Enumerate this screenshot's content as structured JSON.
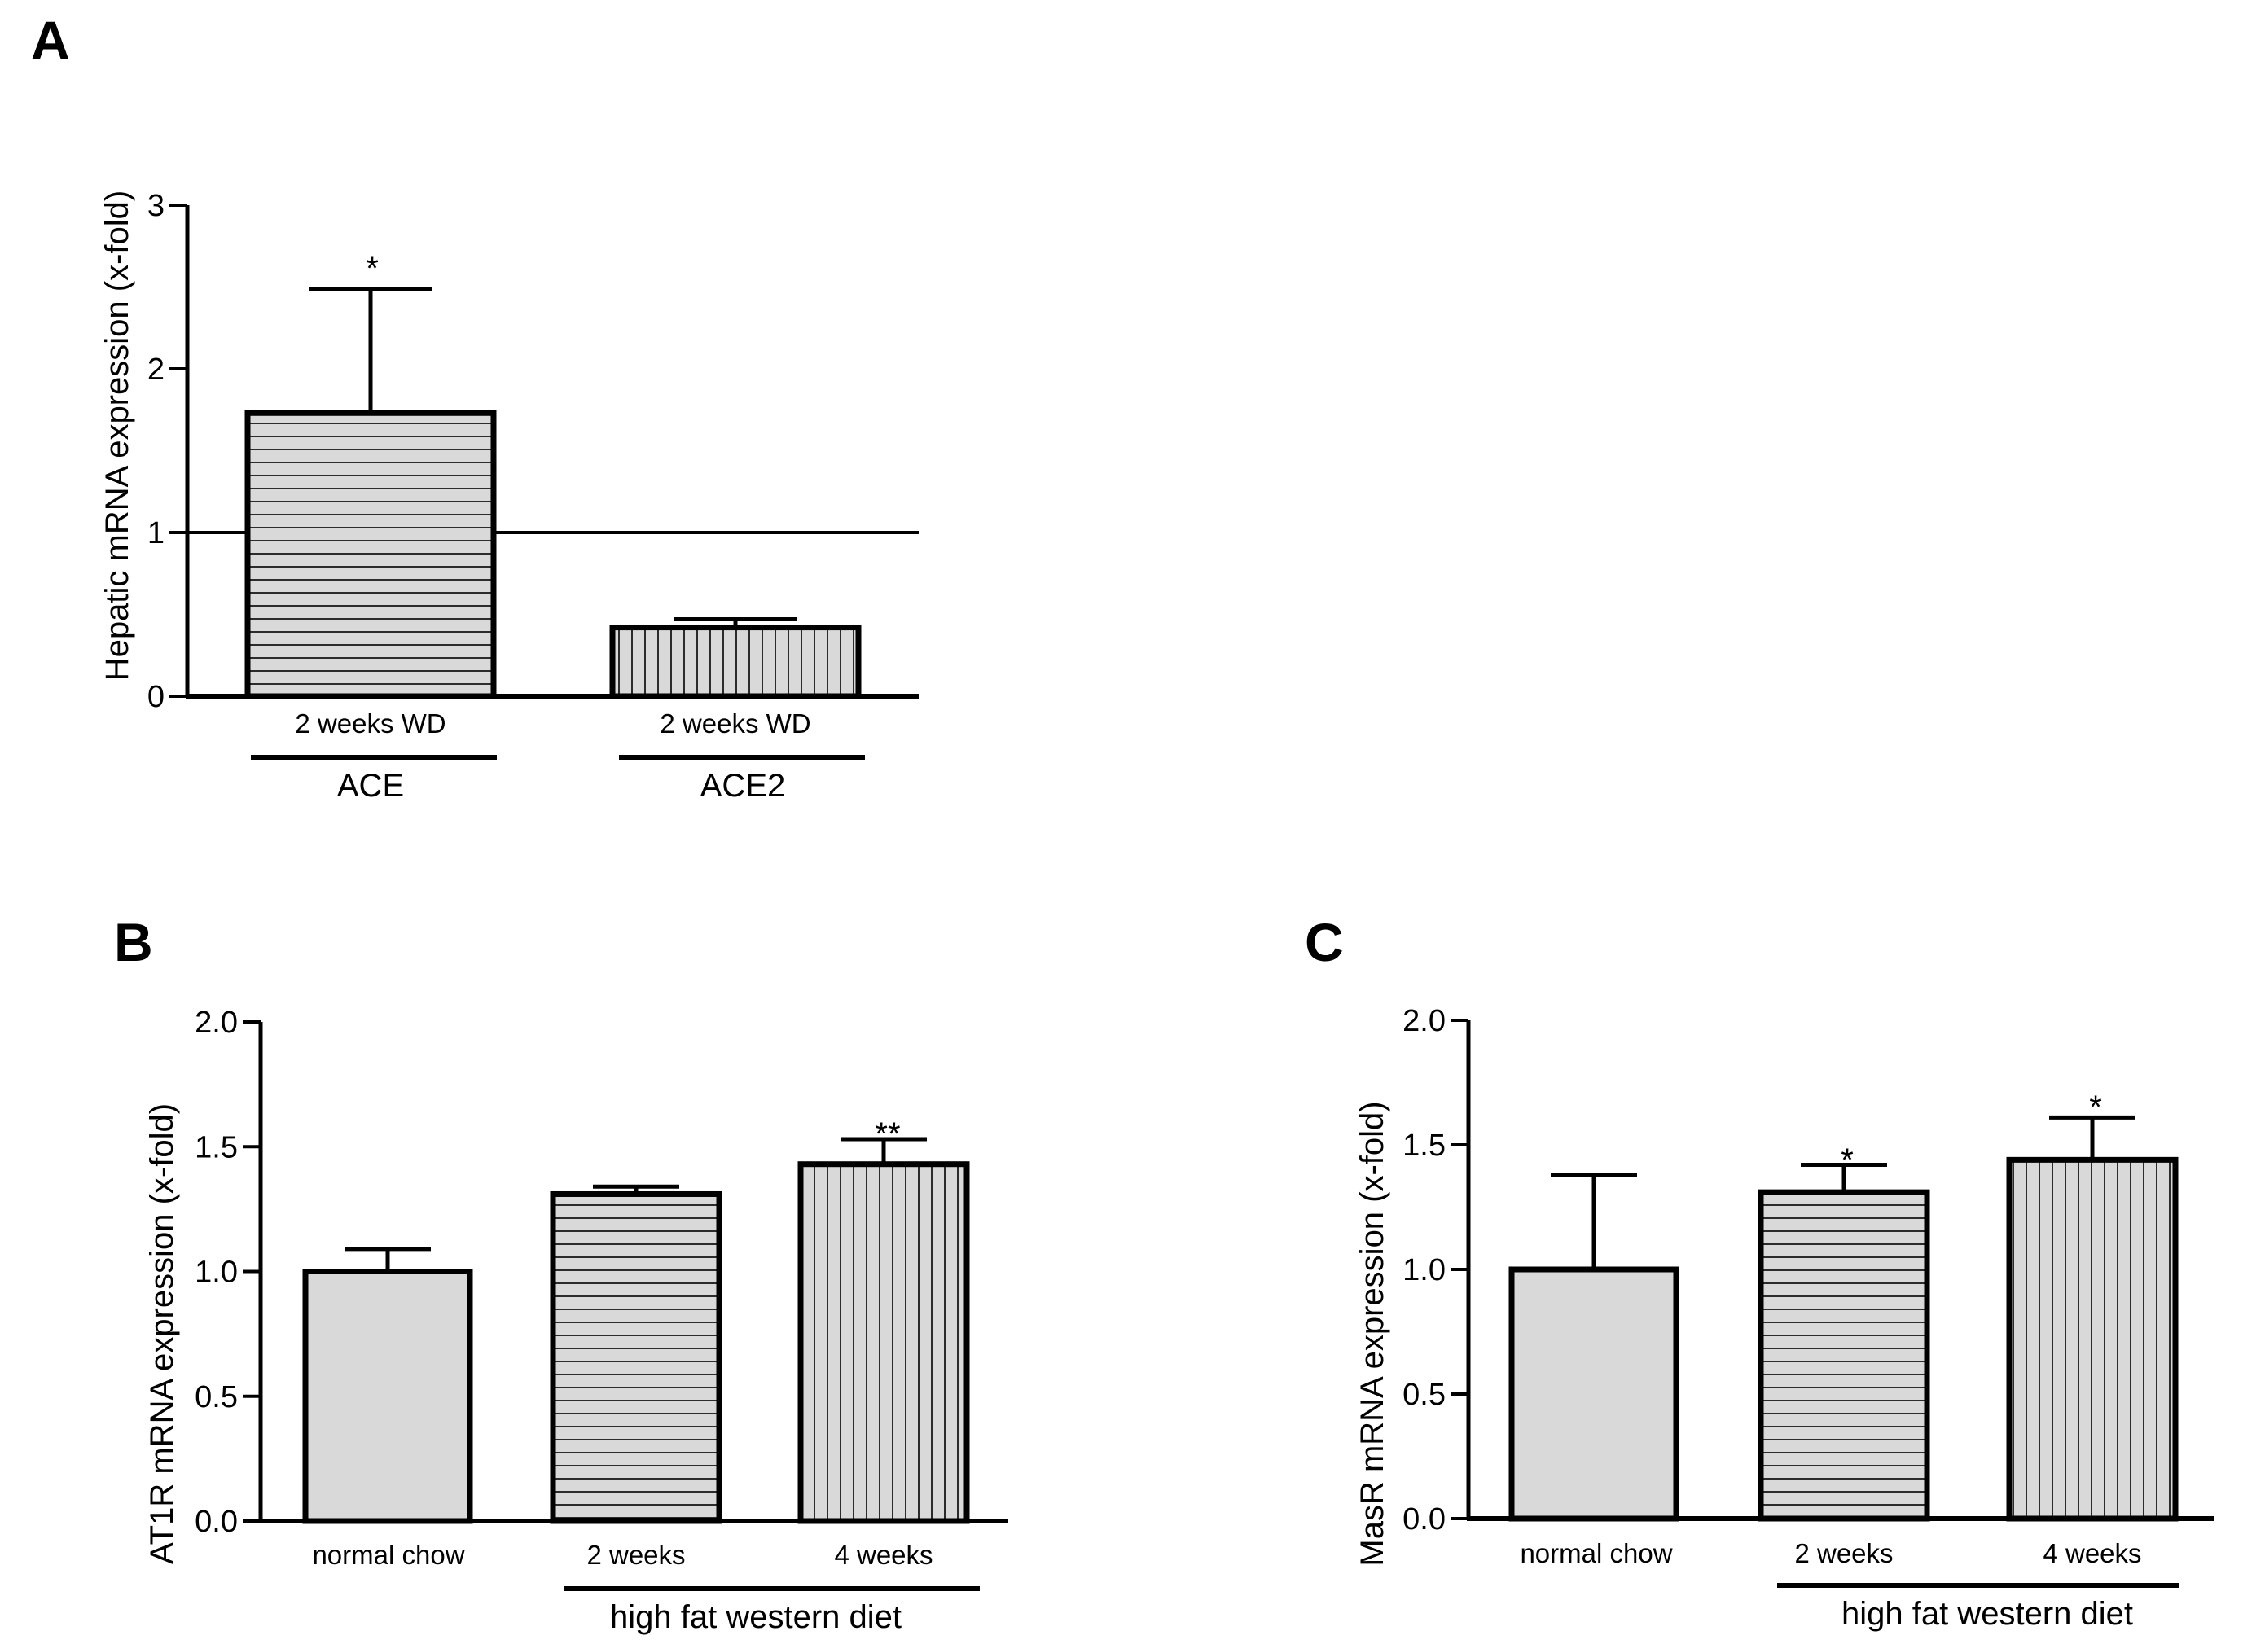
{
  "chart_data": [
    {
      "panel": "A",
      "type": "bar",
      "ylabel": "Hepatic mRNA expression (x-fold)",
      "ylim": [
        0,
        3
      ],
      "yticks": [
        "0",
        "1",
        "2",
        "3"
      ],
      "reference_line": 1,
      "categories": [
        "2 weeks WD",
        "2 weeks WD"
      ],
      "groups": [
        "ACE",
        "ACE2"
      ],
      "values": [
        1.73,
        0.42
      ],
      "errors": [
        0.76,
        0.05
      ],
      "significance": [
        "*",
        ""
      ],
      "patterns": [
        "horizontal",
        "vertical"
      ]
    },
    {
      "panel": "B",
      "type": "bar",
      "ylabel": "AT1R mRNA expression (x-fold)",
      "ylim": [
        0,
        2
      ],
      "yticks": [
        "0.0",
        "0.5",
        "1.0",
        "1.5",
        "2.0"
      ],
      "categories": [
        "normal chow",
        "2 weeks",
        "4 weeks"
      ],
      "group_label": "high fat western diet",
      "values": [
        1.0,
        1.31,
        1.43
      ],
      "errors": [
        0.09,
        0.03,
        0.1
      ],
      "significance": [
        "",
        "",
        "**"
      ],
      "patterns": [
        "solid",
        "horizontal",
        "vertical"
      ]
    },
    {
      "panel": "C",
      "type": "bar",
      "ylabel": "MasR mRNA expression (x-fold)",
      "ylim": [
        0,
        2
      ],
      "yticks": [
        "0.0",
        "0.5",
        "1.0",
        "1.5",
        "2.0"
      ],
      "categories": [
        "normal chow",
        "2 weeks",
        "4 weeks"
      ],
      "group_label": "high fat western diet",
      "values": [
        1.0,
        1.31,
        1.44
      ],
      "errors": [
        0.38,
        0.11,
        0.17
      ],
      "significance": [
        "",
        "*",
        "*"
      ],
      "patterns": [
        "solid",
        "horizontal",
        "vertical"
      ]
    }
  ],
  "colors": {
    "bar_fill": "#d9d9d9",
    "ink": "#000000"
  }
}
